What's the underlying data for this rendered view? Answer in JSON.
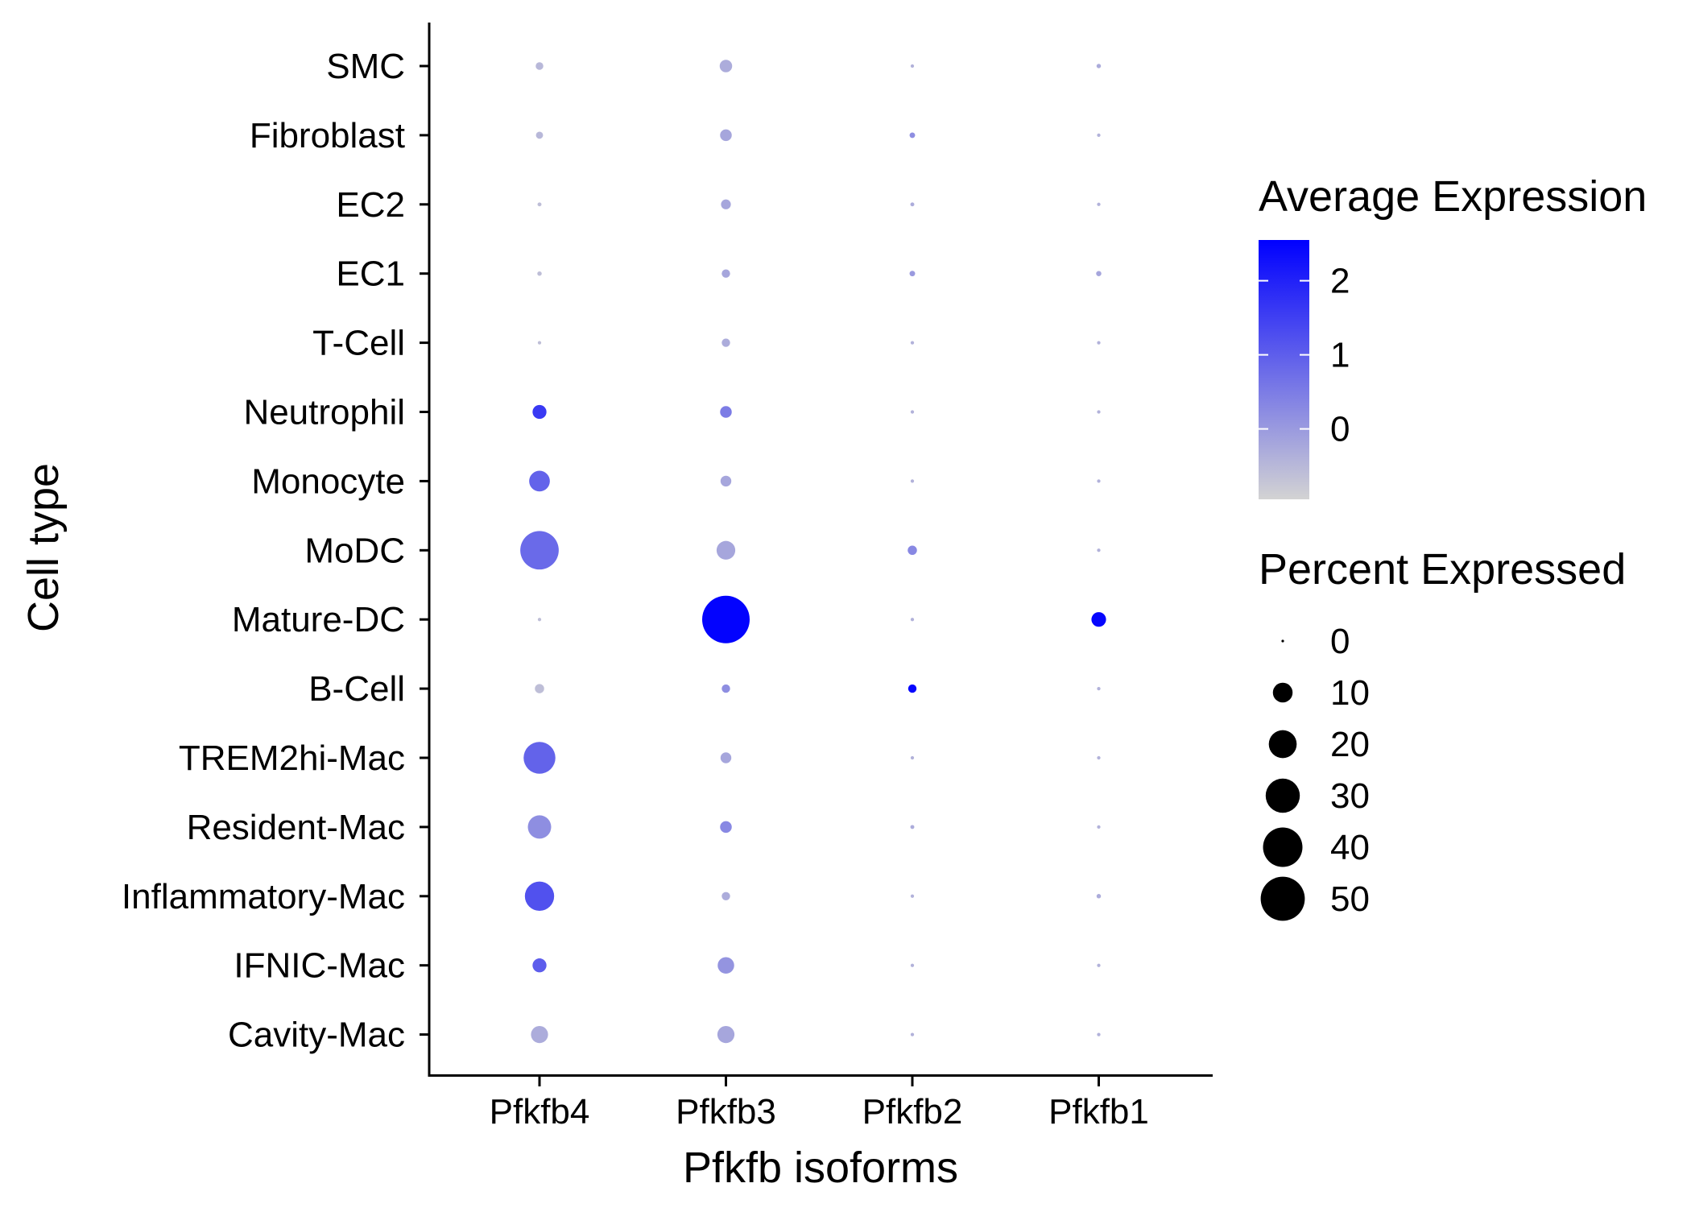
{
  "chart_data": {
    "type": "dot",
    "xlabel": "Pfkfb isoforms",
    "ylabel": "Cell type",
    "genes": [
      "Pfkfb4",
      "Pfkfb3",
      "Pfkfb2",
      "Pfkfb1"
    ],
    "cell_types": [
      "SMC",
      "Fibroblast",
      "EC2",
      "EC1",
      "T-Cell",
      "Neutrophil",
      "Monocyte",
      "MoDC",
      "Mature-DC",
      "B-Cell",
      "TREM2hi-Mac",
      "Resident-Mac",
      "Inflammatory-Mac",
      "IFNIC-Mac",
      "Cavity-Mac"
    ],
    "points": [
      {
        "cell": "SMC",
        "gene": "Pfkfb4",
        "pct": 1.5,
        "expr": -0.5
      },
      {
        "cell": "SMC",
        "gene": "Pfkfb3",
        "pct": 4,
        "expr": -0.3
      },
      {
        "cell": "SMC",
        "gene": "Pfkfb2",
        "pct": 0.3,
        "expr": -0.4
      },
      {
        "cell": "SMC",
        "gene": "Pfkfb1",
        "pct": 0.5,
        "expr": -0.3
      },
      {
        "cell": "Fibroblast",
        "gene": "Pfkfb4",
        "pct": 1.3,
        "expr": -0.5
      },
      {
        "cell": "Fibroblast",
        "gene": "Pfkfb3",
        "pct": 3.5,
        "expr": -0.2
      },
      {
        "cell": "Fibroblast",
        "gene": "Pfkfb2",
        "pct": 0.8,
        "expr": 0.2
      },
      {
        "cell": "Fibroblast",
        "gene": "Pfkfb1",
        "pct": 0.3,
        "expr": -0.4
      },
      {
        "cell": "EC2",
        "gene": "Pfkfb4",
        "pct": 0.4,
        "expr": -0.6
      },
      {
        "cell": "EC2",
        "gene": "Pfkfb3",
        "pct": 2.5,
        "expr": -0.2
      },
      {
        "cell": "EC2",
        "gene": "Pfkfb2",
        "pct": 0.4,
        "expr": -0.3
      },
      {
        "cell": "EC2",
        "gene": "Pfkfb1",
        "pct": 0.3,
        "expr": -0.4
      },
      {
        "cell": "EC1",
        "gene": "Pfkfb4",
        "pct": 0.5,
        "expr": -0.6
      },
      {
        "cell": "EC1",
        "gene": "Pfkfb3",
        "pct": 1.8,
        "expr": -0.2
      },
      {
        "cell": "EC1",
        "gene": "Pfkfb2",
        "pct": 0.8,
        "expr": 0.0
      },
      {
        "cell": "EC1",
        "gene": "Pfkfb1",
        "pct": 0.7,
        "expr": -0.2
      },
      {
        "cell": "T-Cell",
        "gene": "Pfkfb4",
        "pct": 0.3,
        "expr": -0.6
      },
      {
        "cell": "T-Cell",
        "gene": "Pfkfb3",
        "pct": 1.8,
        "expr": -0.3
      },
      {
        "cell": "T-Cell",
        "gene": "Pfkfb2",
        "pct": 0.3,
        "expr": -0.4
      },
      {
        "cell": "T-Cell",
        "gene": "Pfkfb1",
        "pct": 0.3,
        "expr": -0.4
      },
      {
        "cell": "Neutrophil",
        "gene": "Pfkfb4",
        "pct": 5,
        "expr": 1.6
      },
      {
        "cell": "Neutrophil",
        "gene": "Pfkfb3",
        "pct": 3.5,
        "expr": 0.5
      },
      {
        "cell": "Neutrophil",
        "gene": "Pfkfb2",
        "pct": 0.3,
        "expr": -0.4
      },
      {
        "cell": "Neutrophil",
        "gene": "Pfkfb1",
        "pct": 0.3,
        "expr": -0.4
      },
      {
        "cell": "Monocyte",
        "gene": "Pfkfb4",
        "pct": 11,
        "expr": 0.9
      },
      {
        "cell": "Monocyte",
        "gene": "Pfkfb3",
        "pct": 3,
        "expr": -0.2
      },
      {
        "cell": "Monocyte",
        "gene": "Pfkfb2",
        "pct": 0.3,
        "expr": -0.4
      },
      {
        "cell": "Monocyte",
        "gene": "Pfkfb1",
        "pct": 0.3,
        "expr": -0.4
      },
      {
        "cell": "MoDC",
        "gene": "Pfkfb4",
        "pct": 38,
        "expr": 0.8
      },
      {
        "cell": "MoDC",
        "gene": "Pfkfb3",
        "pct": 9,
        "expr": -0.2
      },
      {
        "cell": "MoDC",
        "gene": "Pfkfb2",
        "pct": 2.2,
        "expr": 0.3
      },
      {
        "cell": "MoDC",
        "gene": "Pfkfb1",
        "pct": 0.3,
        "expr": -0.4
      },
      {
        "cell": "Mature-DC",
        "gene": "Pfkfb4",
        "pct": 0.3,
        "expr": -0.6
      },
      {
        "cell": "Mature-DC",
        "gene": "Pfkfb3",
        "pct": 58,
        "expr": 2.5
      },
      {
        "cell": "Mature-DC",
        "gene": "Pfkfb2",
        "pct": 0.3,
        "expr": -0.4
      },
      {
        "cell": "Mature-DC",
        "gene": "Pfkfb1",
        "pct": 5.5,
        "expr": 2.45
      },
      {
        "cell": "B-Cell",
        "gene": "Pfkfb4",
        "pct": 2.2,
        "expr": -0.6
      },
      {
        "cell": "B-Cell",
        "gene": "Pfkfb3",
        "pct": 1.8,
        "expr": 0.2
      },
      {
        "cell": "B-Cell",
        "gene": "Pfkfb2",
        "pct": 1.8,
        "expr": 2.45
      },
      {
        "cell": "B-Cell",
        "gene": "Pfkfb1",
        "pct": 0.3,
        "expr": -0.4
      },
      {
        "cell": "TREM2hi-Mac",
        "gene": "Pfkfb4",
        "pct": 26,
        "expr": 0.9
      },
      {
        "cell": "TREM2hi-Mac",
        "gene": "Pfkfb3",
        "pct": 3,
        "expr": -0.2
      },
      {
        "cell": "TREM2hi-Mac",
        "gene": "Pfkfb2",
        "pct": 0.3,
        "expr": -0.4
      },
      {
        "cell": "TREM2hi-Mac",
        "gene": "Pfkfb1",
        "pct": 0.3,
        "expr": -0.4
      },
      {
        "cell": "Resident-Mac",
        "gene": "Pfkfb4",
        "pct": 14,
        "expr": 0.2
      },
      {
        "cell": "Resident-Mac",
        "gene": "Pfkfb3",
        "pct": 3.5,
        "expr": 0.3
      },
      {
        "cell": "Resident-Mac",
        "gene": "Pfkfb2",
        "pct": 0.4,
        "expr": -0.3
      },
      {
        "cell": "Resident-Mac",
        "gene": "Pfkfb1",
        "pct": 0.3,
        "expr": -0.4
      },
      {
        "cell": "Inflammatory-Mac",
        "gene": "Pfkfb4",
        "pct": 22,
        "expr": 1.2
      },
      {
        "cell": "Inflammatory-Mac",
        "gene": "Pfkfb3",
        "pct": 1.8,
        "expr": -0.3
      },
      {
        "cell": "Inflammatory-Mac",
        "gene": "Pfkfb2",
        "pct": 0.3,
        "expr": -0.4
      },
      {
        "cell": "Inflammatory-Mac",
        "gene": "Pfkfb1",
        "pct": 0.5,
        "expr": -0.3
      },
      {
        "cell": "IFNIC-Mac",
        "gene": "Pfkfb4",
        "pct": 5,
        "expr": 1.0
      },
      {
        "cell": "IFNIC-Mac",
        "gene": "Pfkfb3",
        "pct": 7,
        "expr": 0.1
      },
      {
        "cell": "IFNIC-Mac",
        "gene": "Pfkfb2",
        "pct": 0.3,
        "expr": -0.4
      },
      {
        "cell": "IFNIC-Mac",
        "gene": "Pfkfb1",
        "pct": 0.3,
        "expr": -0.4
      },
      {
        "cell": "Cavity-Mac",
        "gene": "Pfkfb4",
        "pct": 7.5,
        "expr": -0.3
      },
      {
        "cell": "Cavity-Mac",
        "gene": "Pfkfb3",
        "pct": 7.5,
        "expr": -0.2
      },
      {
        "cell": "Cavity-Mac",
        "gene": "Pfkfb2",
        "pct": 0.3,
        "expr": -0.4
      },
      {
        "cell": "Cavity-Mac",
        "gene": "Pfkfb1",
        "pct": 0.3,
        "expr": -0.4
      }
    ],
    "color_legend": {
      "title": "Average Expression",
      "min": -0.95,
      "max": 2.55,
      "low_color": "#d3d3d3",
      "high_color": "#0000ff",
      "ticks": [
        0,
        1,
        2
      ]
    },
    "size_legend": {
      "title": "Percent Expressed",
      "values": [
        0,
        10,
        20,
        30,
        40,
        50
      ]
    },
    "legend_position": "right",
    "grid": false
  }
}
